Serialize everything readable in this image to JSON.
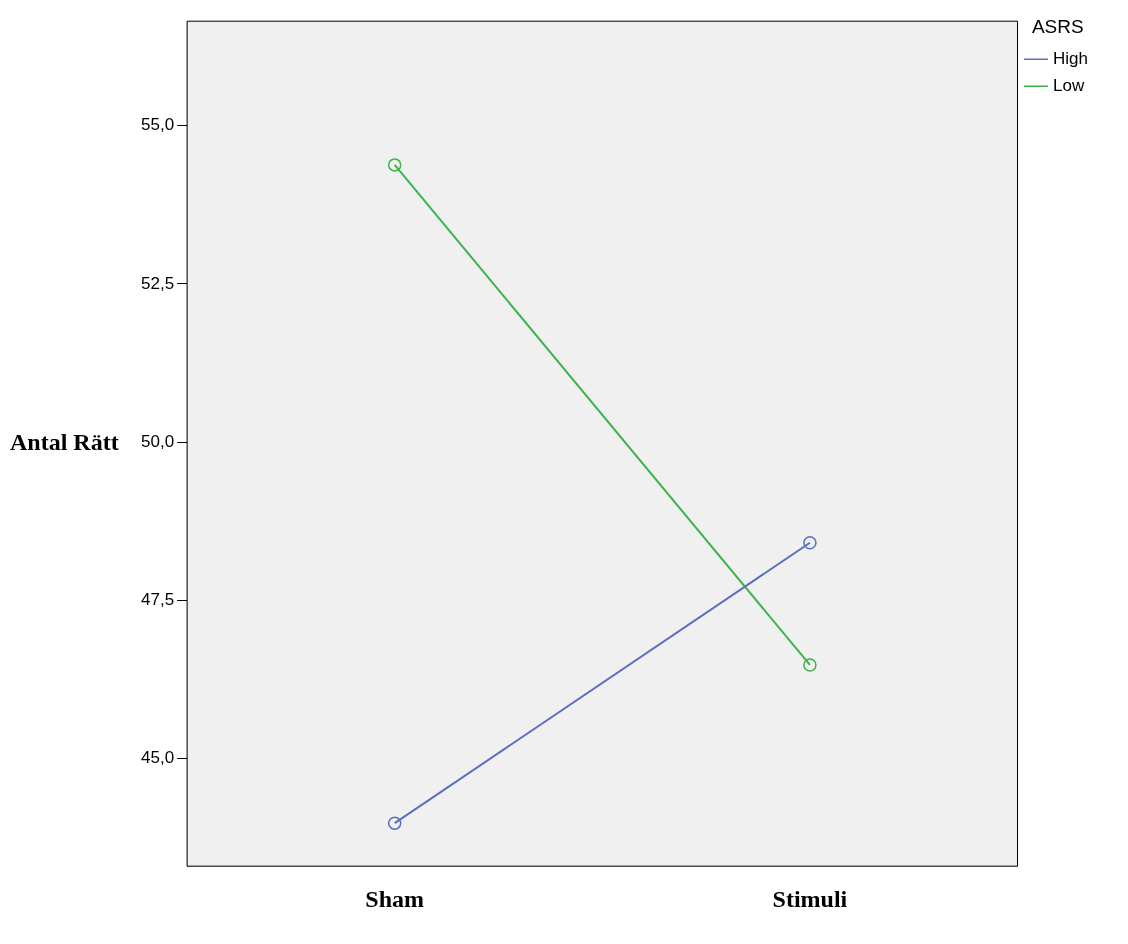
{
  "chart_data": {
    "type": "line",
    "ylabel": "Antal Rätt",
    "legend_title": "ASRS",
    "categories": [
      "Sham",
      "Stimuli"
    ],
    "series": [
      {
        "name": "High",
        "color": "#5a6fc0",
        "values": [
          43.98,
          48.41
        ]
      },
      {
        "name": "Low",
        "color": "#3cb44a",
        "values": [
          54.38,
          46.48
        ]
      }
    ],
    "ylim": [
      43.3,
      56.65
    ],
    "yticks": [
      {
        "value": 45,
        "label": "45,0"
      },
      {
        "value": 47.5,
        "label": "47,5"
      },
      {
        "value": 50,
        "label": "50,0"
      },
      {
        "value": 52.5,
        "label": "52,5"
      },
      {
        "value": 55,
        "label": "55,0"
      }
    ],
    "grid": false,
    "legend": "top right",
    "marker": "circle",
    "line_style": "solid"
  }
}
